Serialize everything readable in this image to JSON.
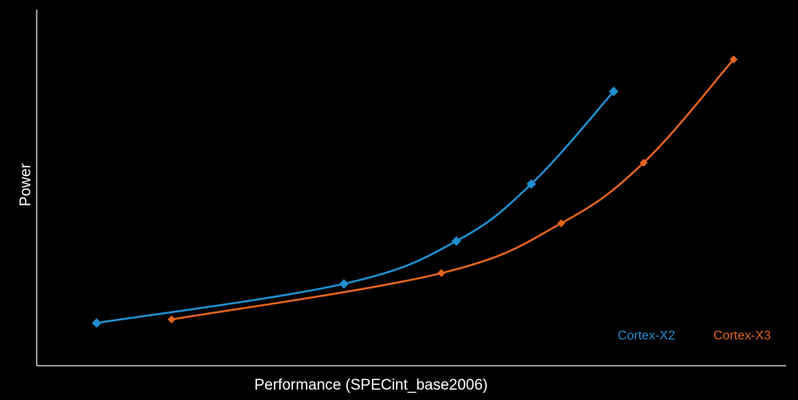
{
  "chart_data": {
    "type": "line",
    "title": "",
    "xlabel": "Performance (SPECint_base2006)",
    "ylabel": "Power",
    "xlim": [
      0,
      100
    ],
    "ylim": [
      0,
      100
    ],
    "ticks_shown": false,
    "grid": false,
    "legend_position": "bottom-right",
    "series": [
      {
        "name": "Cortex-X2",
        "color": "#1f8fd0",
        "marker": "diamond",
        "x": [
          8,
          41,
          56,
          66,
          77
        ],
        "y": [
          12,
          23,
          35,
          51,
          77
        ]
      },
      {
        "name": "Cortex-X3",
        "color": "#e2641e",
        "marker": "diamond",
        "x": [
          18,
          54,
          70,
          81,
          93
        ],
        "y": [
          13,
          26,
          40,
          57,
          86
        ]
      }
    ]
  },
  "background_color": "#000000",
  "axis_color": "#c8c8c8"
}
